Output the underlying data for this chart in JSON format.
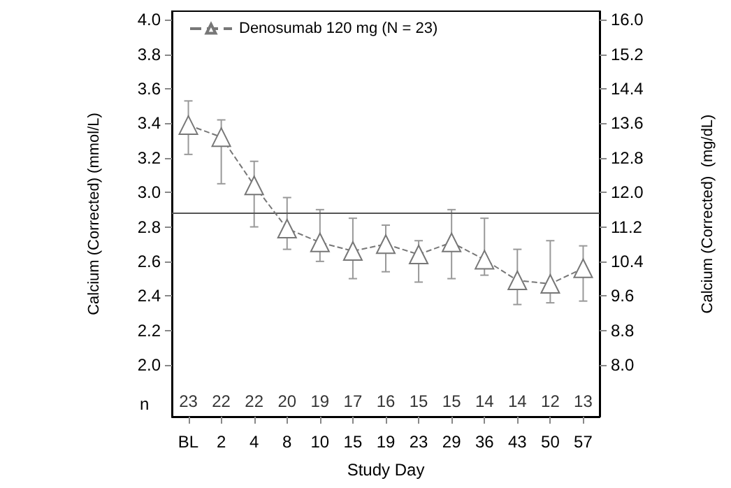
{
  "chart_data": {
    "type": "line",
    "xlabel": "Study Day",
    "ylabel": "Calcium (Corrected) (mmol/L)",
    "y2label": "Calcium (Corrected)  (mg/dL)",
    "categories": [
      "BL",
      "2",
      "4",
      "8",
      "10",
      "15",
      "19",
      "23",
      "29",
      "36",
      "43",
      "50",
      "57"
    ],
    "series": [
      {
        "name": "Denosumab 120 mg (N = 23)",
        "color": "#777777",
        "values": [
          3.39,
          3.32,
          3.04,
          2.79,
          2.71,
          2.66,
          2.7,
          2.64,
          2.71,
          2.61,
          2.49,
          2.47,
          2.56
        ],
        "errors": [
          [
            3.22,
            3.53
          ],
          [
            3.05,
            3.42
          ],
          [
            2.8,
            3.18
          ],
          [
            2.67,
            2.97
          ],
          [
            2.6,
            2.9
          ],
          [
            2.5,
            2.85
          ],
          [
            2.54,
            2.81
          ],
          [
            2.48,
            2.72
          ],
          [
            2.5,
            2.9
          ],
          [
            2.52,
            2.85
          ],
          [
            2.35,
            2.67
          ],
          [
            2.36,
            2.72
          ],
          [
            2.37,
            2.69
          ]
        ]
      }
    ],
    "ylim": [
      1.7,
      4.05
    ],
    "yticks": [
      {
        "value": 2,
        "label": "2.0"
      },
      2.2,
      2.4,
      2.6,
      2.8,
      {
        "value": 3,
        "label": "3.0"
      },
      3.2,
      3.4,
      3.6,
      3.8,
      {
        "value": 4,
        "label": "4.0"
      }
    ],
    "y2lim": [
      6.8,
      16.2
    ],
    "y2ticks": [
      {
        "value": 8,
        "label": "8.0"
      },
      8.8,
      9.6,
      10.4,
      11.2,
      {
        "value": 12,
        "label": "12.0"
      },
      12.8,
      13.6,
      14.4,
      15.2,
      {
        "value": 16,
        "label": "16.0"
      }
    ],
    "ref_lines": [
      {
        "axis": "y",
        "value": 2.88,
        "color": "#555555"
      }
    ],
    "annotations": [
      "n",
      "23",
      "22",
      "22",
      "20",
      "19",
      "17",
      "16",
      "15",
      "15",
      "14",
      "14",
      "12",
      "13"
    ],
    "grid": false,
    "legend": "top left",
    "marker": "triangle",
    "line_style": "dashed"
  }
}
